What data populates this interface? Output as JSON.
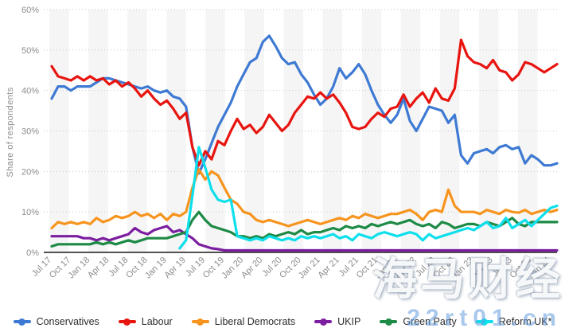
{
  "watermark": {
    "primary": "海马财经",
    "secondary": "22rt01.cn"
  },
  "chart_data": {
    "type": "line",
    "title": "",
    "xlabel": "",
    "ylabel": "Share of respondents",
    "ylim": [
      0,
      60
    ],
    "y_ticks": [
      "0%",
      "10%",
      "20%",
      "30%",
      "40%",
      "50%",
      "60%"
    ],
    "grid": "horizontal-dotted",
    "plot_bands": "alternating vertical light-gray quarter bands",
    "legend_position": "bottom",
    "x_start": "Jul 2017",
    "x_end": "Feb 2024",
    "x_frequency": "monthly",
    "n_points": 80,
    "x_tick_every_n_points": 3,
    "x_tick_labels": [
      "Jul 17",
      "Oct 17",
      "Jan 18",
      "Apr 18",
      "Jul 18",
      "Oct 18",
      "Jan 19",
      "Apr 19",
      "Jul 19",
      "Oct 19",
      "Jan 20",
      "Apr 20",
      "Jul 20",
      "Oct 20",
      "Jan 21",
      "Apr 21",
      "Jul 21",
      "Oct 21",
      "Jan 22",
      "Apr 22",
      "Jul 22",
      "Oct 22",
      "Jan 23",
      "Apr 23",
      "Jul 23",
      "Oct 23",
      "Jan 24"
    ],
    "series": [
      {
        "name": "Conservatives",
        "color": "#3e7ad3",
        "values": [
          38,
          41,
          41,
          40,
          41,
          41,
          41,
          42,
          43,
          43,
          42.5,
          42,
          41.5,
          41,
          40.5,
          41,
          40,
          39.5,
          40,
          38.5,
          38,
          36,
          26,
          19.5,
          23,
          27,
          31,
          34,
          37,
          41,
          44,
          47,
          48,
          52,
          53.5,
          51,
          48,
          46.5,
          47,
          44,
          42,
          39,
          36.5,
          38,
          41,
          45.5,
          43,
          44.5,
          46.5,
          44,
          40,
          36.5,
          34,
          32,
          34,
          38,
          32.5,
          30,
          33,
          36,
          35.5,
          35,
          32,
          34,
          24,
          22,
          24.5,
          25,
          25.5,
          24.5,
          26,
          26.5,
          25.5,
          26,
          22,
          24,
          23,
          21.5,
          21.5,
          22
        ]
      },
      {
        "name": "Labour",
        "color": "#e8140f",
        "values": [
          46,
          43.5,
          43,
          42.5,
          43.5,
          42.5,
          43.5,
          42.5,
          43,
          41.5,
          42.5,
          41,
          42,
          40.5,
          38.5,
          40,
          38,
          36.5,
          37.5,
          35.5,
          33,
          34.5,
          26,
          21.5,
          25,
          23,
          27.5,
          26.5,
          30,
          33,
          30.5,
          31.5,
          29.5,
          31,
          34,
          32,
          30,
          31.5,
          34.5,
          36.5,
          38.5,
          38,
          39.5,
          38,
          39,
          37,
          34.5,
          31,
          30.5,
          31,
          33,
          34.5,
          33.5,
          35.5,
          36,
          39,
          36,
          38,
          39.5,
          37,
          40.5,
          38,
          37.5,
          40.5,
          52.5,
          48.5,
          47,
          46.5,
          45.5,
          47.5,
          45,
          44.5,
          42.5,
          44,
          47,
          46.5,
          45.5,
          44.5,
          45.5,
          46.5
        ]
      },
      {
        "name": "Liberal Democrats",
        "color": "#f7941e",
        "values": [
          6,
          7.5,
          7,
          7.5,
          7,
          7.5,
          7,
          8.5,
          7.5,
          8,
          9,
          8.5,
          9,
          10,
          9,
          9.5,
          8.5,
          9.5,
          8,
          9.5,
          9,
          10,
          16,
          20.5,
          18,
          20,
          19,
          16,
          13,
          12,
          10,
          9.5,
          8,
          7.5,
          8,
          7.5,
          7,
          6.5,
          7,
          7.5,
          8,
          7.5,
          7,
          7.5,
          8,
          8.5,
          8,
          9,
          8.5,
          9.5,
          9,
          8.5,
          9,
          9.5,
          9.5,
          10,
          10.5,
          9.5,
          8,
          10,
          10.5,
          10,
          15.5,
          11.5,
          10,
          10,
          10,
          9.5,
          10.5,
          10,
          9.5,
          10.5,
          10,
          9.8,
          10.5,
          9.5,
          10,
          10.5,
          10,
          10.5
        ]
      },
      {
        "name": "UKIP",
        "color": "#7b1fa0",
        "values": [
          4,
          4,
          4,
          4,
          4,
          3.5,
          3.5,
          3,
          3.5,
          3,
          3.5,
          4,
          4.5,
          6,
          5,
          4.5,
          5.5,
          6,
          6.5,
          5,
          5.5,
          4.5,
          3.5,
          2,
          1.5,
          1,
          0.8,
          0.5,
          0.5,
          0.5,
          0.5,
          0.5,
          0.5,
          0.5,
          0.5,
          0.5,
          0.5,
          0.5,
          0.5,
          0.5,
          0.5,
          0.5,
          0.5,
          0.5,
          0.5,
          0.5,
          0.5,
          0.5,
          0.5,
          0.5,
          0.5,
          0.5,
          0.5,
          0.5,
          0.5,
          0.5,
          0.5,
          0.5,
          0.5,
          0.5,
          0.5,
          0.5,
          0.5,
          0.5,
          0.5,
          0.5,
          0.5,
          0.5,
          0.5,
          0.5,
          0.5,
          0.5,
          0.5,
          0.5,
          0.5,
          0.5,
          0.5,
          0.5,
          0.5,
          0.5
        ]
      },
      {
        "name": "Green Party",
        "color": "#1d8a45",
        "values": [
          1.5,
          2,
          2,
          2,
          2,
          2,
          2,
          2.5,
          2,
          2.5,
          2,
          2.5,
          3,
          2.5,
          3,
          3.5,
          3.5,
          3.5,
          3.5,
          4,
          4.5,
          5,
          8,
          10,
          8,
          6.5,
          6,
          5.5,
          5,
          4,
          4,
          3.5,
          4,
          3.5,
          4.5,
          4,
          4.5,
          5,
          4.5,
          5.5,
          4.5,
          5,
          5,
          5.5,
          6,
          5.5,
          6.5,
          6,
          6.5,
          6,
          7,
          6.5,
          7,
          7.5,
          7,
          7.5,
          8,
          7,
          6.5,
          7,
          6,
          7.5,
          7,
          6,
          6.5,
          7,
          7,
          6.5,
          7.5,
          7,
          6.5,
          7.5,
          8.5,
          7,
          6.5,
          7.5,
          7.5,
          7.5,
          7.5,
          7.5
        ]
      },
      {
        "name": "Reform UK*",
        "color": "#0ddfec",
        "values": [
          null,
          null,
          null,
          null,
          null,
          null,
          null,
          null,
          null,
          null,
          null,
          null,
          null,
          null,
          null,
          null,
          null,
          null,
          null,
          null,
          1,
          3,
          14,
          26,
          21,
          15.5,
          13,
          12.5,
          13,
          4,
          3.5,
          3,
          3.5,
          3,
          4,
          3.5,
          3,
          3.5,
          3,
          4,
          3.5,
          4,
          3.5,
          4,
          4.5,
          3.5,
          4,
          3,
          4.5,
          4,
          3.5,
          4.5,
          5,
          4.5,
          4,
          4.5,
          5,
          4.5,
          3,
          4.5,
          3.5,
          4,
          4.5,
          5,
          5.5,
          6,
          5.5,
          6.5,
          7.5,
          6,
          6.5,
          8.5,
          6,
          7,
          8,
          6.5,
          8,
          9.5,
          11,
          11.5
        ]
      }
    ]
  }
}
